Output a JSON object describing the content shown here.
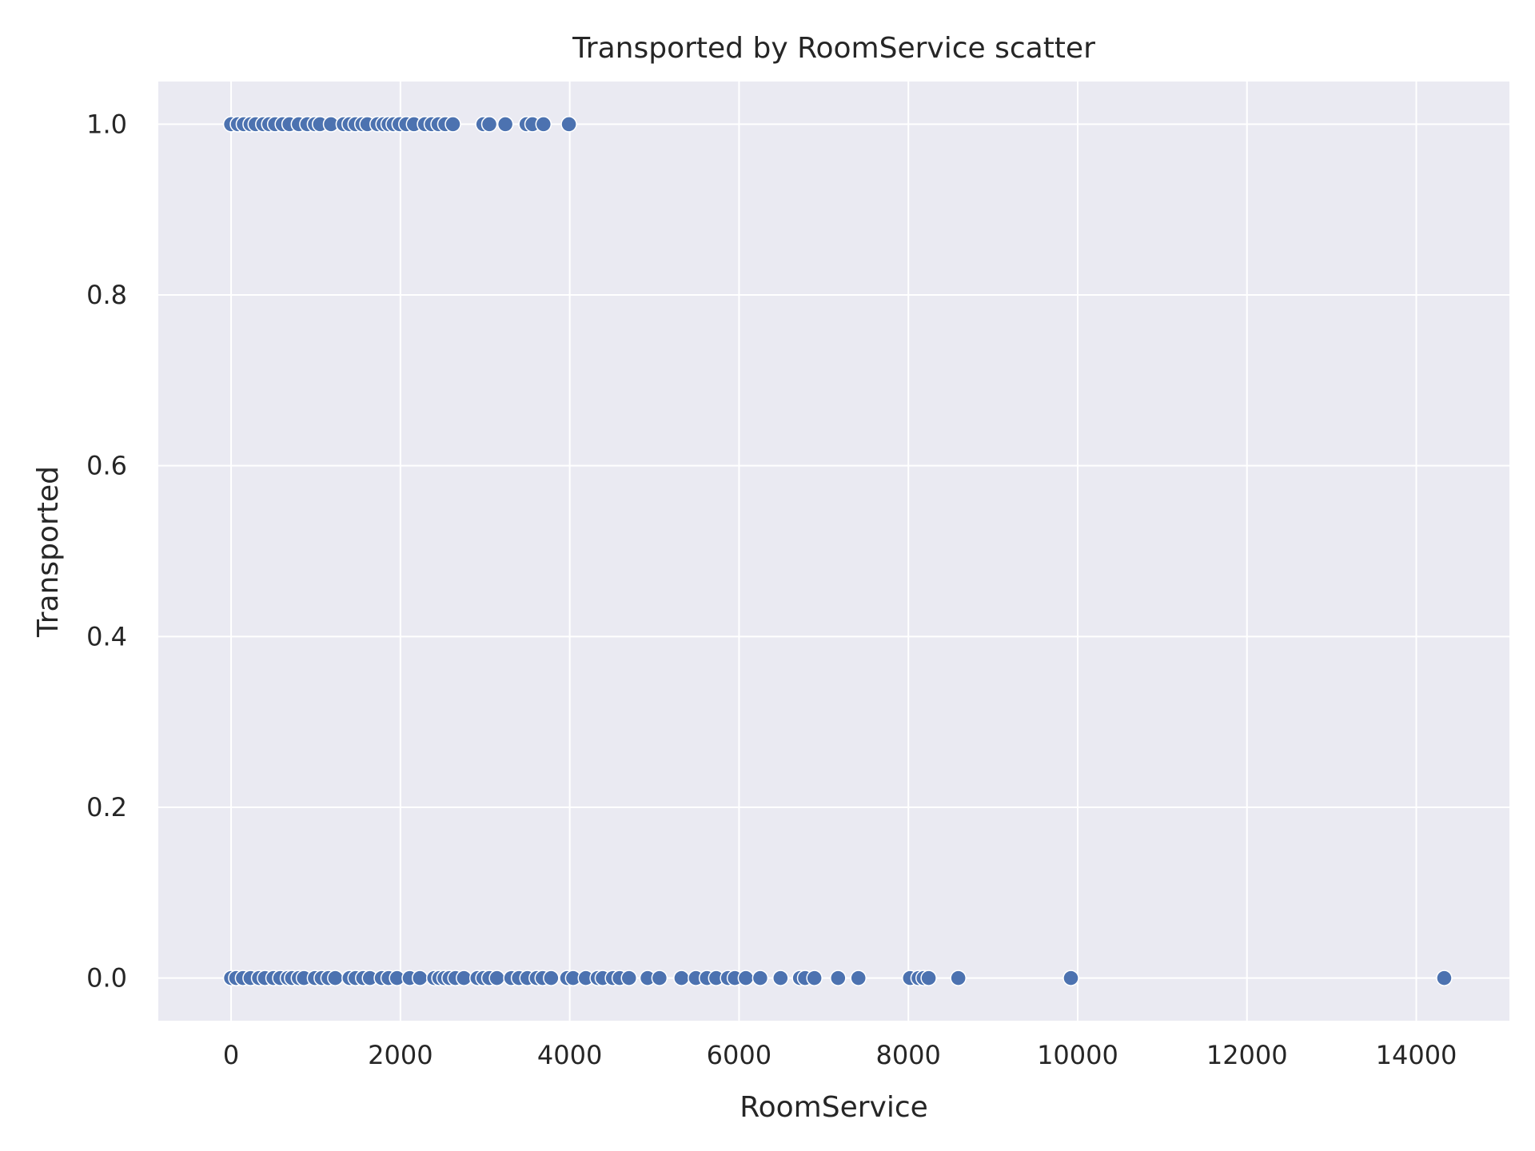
{
  "chart_data": {
    "type": "scatter",
    "title": "Transported by RoomService scatter",
    "xlabel": "RoomService",
    "ylabel": "Transported",
    "xlim": [
      -860,
      15100
    ],
    "ylim": [
      -0.05,
      1.05
    ],
    "xticks": [
      0,
      2000,
      4000,
      6000,
      8000,
      10000,
      12000,
      14000
    ],
    "xtick_labels": [
      "0",
      "2000",
      "4000",
      "6000",
      "8000",
      "10000",
      "12000",
      "14000"
    ],
    "yticks": [
      0.0,
      0.2,
      0.4,
      0.6,
      0.8,
      1.0
    ],
    "ytick_labels": [
      "0.0",
      "0.2",
      "0.4",
      "0.6",
      "0.8",
      "1.0"
    ],
    "grid": true,
    "colors": {
      "background": "#eaeaf2",
      "grid": "#ffffff",
      "marker": "#4c72b0",
      "marker_edge": "#ffffff",
      "text": "#262626"
    },
    "series": [
      {
        "values": [
          {
            "x": 0,
            "y": 1
          },
          {
            "x": 80,
            "y": 1
          },
          {
            "x": 150,
            "y": 1
          },
          {
            "x": 230,
            "y": 1
          },
          {
            "x": 290,
            "y": 1
          },
          {
            "x": 380,
            "y": 1
          },
          {
            "x": 450,
            "y": 1
          },
          {
            "x": 520,
            "y": 1
          },
          {
            "x": 610,
            "y": 1
          },
          {
            "x": 690,
            "y": 1
          },
          {
            "x": 800,
            "y": 1
          },
          {
            "x": 900,
            "y": 1
          },
          {
            "x": 990,
            "y": 1
          },
          {
            "x": 1050,
            "y": 1
          },
          {
            "x": 1180,
            "y": 1
          },
          {
            "x": 1330,
            "y": 1
          },
          {
            "x": 1400,
            "y": 1
          },
          {
            "x": 1470,
            "y": 1
          },
          {
            "x": 1550,
            "y": 1
          },
          {
            "x": 1610,
            "y": 1
          },
          {
            "x": 1730,
            "y": 1
          },
          {
            "x": 1800,
            "y": 1
          },
          {
            "x": 1860,
            "y": 1
          },
          {
            "x": 1920,
            "y": 1
          },
          {
            "x": 1990,
            "y": 1
          },
          {
            "x": 2070,
            "y": 1
          },
          {
            "x": 2160,
            "y": 1
          },
          {
            "x": 2290,
            "y": 1
          },
          {
            "x": 2370,
            "y": 1
          },
          {
            "x": 2450,
            "y": 1
          },
          {
            "x": 2530,
            "y": 1
          },
          {
            "x": 2620,
            "y": 1
          },
          {
            "x": 2980,
            "y": 1
          },
          {
            "x": 3050,
            "y": 1
          },
          {
            "x": 3240,
            "y": 1
          },
          {
            "x": 3490,
            "y": 1
          },
          {
            "x": 3560,
            "y": 1
          },
          {
            "x": 3690,
            "y": 1
          },
          {
            "x": 3990,
            "y": 1
          },
          {
            "x": 0,
            "y": 0
          },
          {
            "x": 60,
            "y": 0
          },
          {
            "x": 140,
            "y": 0
          },
          {
            "x": 230,
            "y": 0
          },
          {
            "x": 330,
            "y": 0
          },
          {
            "x": 400,
            "y": 0
          },
          {
            "x": 500,
            "y": 0
          },
          {
            "x": 580,
            "y": 0
          },
          {
            "x": 670,
            "y": 0
          },
          {
            "x": 720,
            "y": 0
          },
          {
            "x": 800,
            "y": 0
          },
          {
            "x": 860,
            "y": 0
          },
          {
            "x": 990,
            "y": 0
          },
          {
            "x": 1070,
            "y": 0
          },
          {
            "x": 1150,
            "y": 0
          },
          {
            "x": 1230,
            "y": 0
          },
          {
            "x": 1400,
            "y": 0
          },
          {
            "x": 1470,
            "y": 0
          },
          {
            "x": 1560,
            "y": 0
          },
          {
            "x": 1640,
            "y": 0
          },
          {
            "x": 1780,
            "y": 0
          },
          {
            "x": 1860,
            "y": 0
          },
          {
            "x": 1960,
            "y": 0
          },
          {
            "x": 2110,
            "y": 0
          },
          {
            "x": 2230,
            "y": 0
          },
          {
            "x": 2400,
            "y": 0
          },
          {
            "x": 2460,
            "y": 0
          },
          {
            "x": 2520,
            "y": 0
          },
          {
            "x": 2580,
            "y": 0
          },
          {
            "x": 2650,
            "y": 0
          },
          {
            "x": 2750,
            "y": 0
          },
          {
            "x": 2910,
            "y": 0
          },
          {
            "x": 2980,
            "y": 0
          },
          {
            "x": 3050,
            "y": 0
          },
          {
            "x": 3140,
            "y": 0
          },
          {
            "x": 3310,
            "y": 0
          },
          {
            "x": 3400,
            "y": 0
          },
          {
            "x": 3500,
            "y": 0
          },
          {
            "x": 3610,
            "y": 0
          },
          {
            "x": 3680,
            "y": 0
          },
          {
            "x": 3780,
            "y": 0
          },
          {
            "x": 3970,
            "y": 0
          },
          {
            "x": 4040,
            "y": 0
          },
          {
            "x": 4190,
            "y": 0
          },
          {
            "x": 4330,
            "y": 0
          },
          {
            "x": 4390,
            "y": 0
          },
          {
            "x": 4510,
            "y": 0
          },
          {
            "x": 4590,
            "y": 0
          },
          {
            "x": 4700,
            "y": 0
          },
          {
            "x": 4920,
            "y": 0
          },
          {
            "x": 5060,
            "y": 0
          },
          {
            "x": 5320,
            "y": 0
          },
          {
            "x": 5490,
            "y": 0
          },
          {
            "x": 5620,
            "y": 0
          },
          {
            "x": 5730,
            "y": 0
          },
          {
            "x": 5870,
            "y": 0
          },
          {
            "x": 5950,
            "y": 0
          },
          {
            "x": 6080,
            "y": 0
          },
          {
            "x": 6250,
            "y": 0
          },
          {
            "x": 6490,
            "y": 0
          },
          {
            "x": 6720,
            "y": 0
          },
          {
            "x": 6780,
            "y": 0
          },
          {
            "x": 6890,
            "y": 0
          },
          {
            "x": 7170,
            "y": 0
          },
          {
            "x": 7410,
            "y": 0
          },
          {
            "x": 8020,
            "y": 0
          },
          {
            "x": 8120,
            "y": 0
          },
          {
            "x": 8180,
            "y": 0
          },
          {
            "x": 8240,
            "y": 0
          },
          {
            "x": 8590,
            "y": 0
          },
          {
            "x": 9920,
            "y": 0
          },
          {
            "x": 14330,
            "y": 0
          }
        ]
      }
    ]
  }
}
